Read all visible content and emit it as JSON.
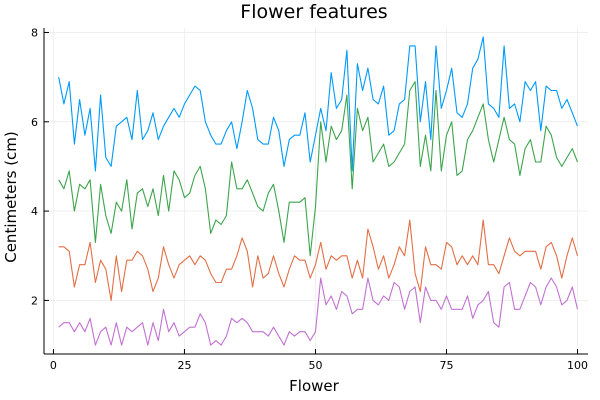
{
  "chart_data": {
    "type": "line",
    "title": "Flower features",
    "xlabel": "Flower",
    "ylabel": "Centimeters (cm)",
    "xlim": [
      0,
      100
    ],
    "ylim": [
      0.8,
      8.1
    ],
    "xticks": [
      0,
      25,
      50,
      75,
      100
    ],
    "yticks": [
      2,
      4,
      6,
      8
    ],
    "grid": true,
    "legend": "none",
    "x_start": 1,
    "series": [
      {
        "color": "#009AFA",
        "values": [
          7.0,
          6.4,
          6.9,
          5.5,
          6.5,
          5.7,
          6.3,
          4.9,
          6.6,
          5.2,
          5.0,
          5.9,
          6.0,
          6.1,
          5.6,
          6.7,
          5.6,
          5.8,
          6.2,
          5.6,
          5.9,
          6.1,
          6.3,
          6.1,
          6.4,
          6.6,
          6.8,
          6.7,
          6.0,
          5.7,
          5.5,
          5.5,
          5.8,
          6.0,
          5.4,
          6.0,
          6.7,
          6.3,
          5.6,
          5.5,
          5.5,
          6.1,
          5.8,
          5.0,
          5.6,
          5.7,
          5.7,
          6.2,
          5.1,
          5.7,
          6.3,
          5.8,
          7.1,
          6.3,
          6.5,
          7.6,
          4.9,
          7.3,
          6.7,
          7.2,
          6.5,
          6.4,
          6.8,
          5.7,
          5.8,
          6.4,
          6.5,
          7.7,
          7.7,
          6.0,
          6.9,
          5.6,
          7.7,
          6.3,
          6.7,
          7.2,
          6.2,
          6.1,
          6.4,
          7.2,
          7.4,
          7.9,
          6.4,
          6.3,
          6.1,
          7.7,
          6.3,
          6.4,
          6.0,
          6.9,
          6.7,
          6.9,
          5.8,
          6.8,
          6.7,
          6.7,
          6.3,
          6.5,
          6.2,
          5.9
        ]
      },
      {
        "color": "#E26F46",
        "values": [
          3.2,
          3.2,
          3.1,
          2.3,
          2.8,
          2.8,
          3.3,
          2.4,
          2.9,
          2.7,
          2.0,
          3.0,
          2.2,
          2.9,
          2.9,
          3.1,
          3.0,
          2.7,
          2.2,
          2.5,
          3.2,
          2.8,
          2.5,
          2.8,
          2.9,
          3.0,
          2.8,
          3.0,
          2.9,
          2.6,
          2.4,
          2.4,
          2.7,
          2.7,
          3.0,
          3.4,
          3.1,
          2.3,
          3.0,
          2.5,
          2.6,
          3.0,
          2.6,
          2.3,
          2.7,
          3.0,
          2.9,
          2.9,
          2.5,
          2.8,
          3.3,
          2.7,
          3.0,
          2.9,
          3.0,
          3.0,
          2.5,
          2.9,
          2.5,
          3.6,
          3.2,
          2.7,
          3.0,
          2.5,
          2.8,
          3.2,
          3.0,
          3.8,
          2.6,
          2.2,
          3.2,
          2.8,
          2.8,
          2.7,
          3.3,
          3.2,
          2.8,
          3.0,
          2.8,
          3.0,
          2.8,
          3.8,
          2.8,
          2.8,
          2.6,
          3.0,
          3.4,
          3.1,
          3.0,
          3.1,
          3.1,
          3.1,
          2.7,
          3.2,
          3.3,
          3.0,
          2.5,
          3.0,
          3.4,
          3.0
        ]
      },
      {
        "color": "#3DA44D",
        "values": [
          4.7,
          4.5,
          4.9,
          4.0,
          4.6,
          4.5,
          4.7,
          3.3,
          4.6,
          3.9,
          3.5,
          4.2,
          4.0,
          4.7,
          3.6,
          4.4,
          4.5,
          4.1,
          4.5,
          3.9,
          4.8,
          4.0,
          4.9,
          4.7,
          4.3,
          4.4,
          4.8,
          5.0,
          4.5,
          3.5,
          3.8,
          3.7,
          3.9,
          5.1,
          4.5,
          4.5,
          4.7,
          4.4,
          4.1,
          4.0,
          4.4,
          4.6,
          4.0,
          3.3,
          4.2,
          4.2,
          4.2,
          4.3,
          3.0,
          4.1,
          6.0,
          5.1,
          5.9,
          5.6,
          5.8,
          6.6,
          4.5,
          6.3,
          5.8,
          6.1,
          5.1,
          5.3,
          5.5,
          5.0,
          5.1,
          5.3,
          5.5,
          6.7,
          6.9,
          5.0,
          5.7,
          4.9,
          6.7,
          4.9,
          5.7,
          6.0,
          4.8,
          4.9,
          5.6,
          5.8,
          6.1,
          6.4,
          5.6,
          5.1,
          5.6,
          6.1,
          5.6,
          5.5,
          4.8,
          5.4,
          5.6,
          5.1,
          5.1,
          5.9,
          5.7,
          5.2,
          5.0,
          5.2,
          5.4,
          5.1
        ]
      },
      {
        "color": "#C271D2",
        "values": [
          1.4,
          1.5,
          1.5,
          1.3,
          1.5,
          1.3,
          1.6,
          1.0,
          1.3,
          1.4,
          1.0,
          1.5,
          1.0,
          1.4,
          1.3,
          1.4,
          1.5,
          1.0,
          1.5,
          1.1,
          1.8,
          1.3,
          1.5,
          1.2,
          1.3,
          1.4,
          1.4,
          1.7,
          1.5,
          1.0,
          1.1,
          1.0,
          1.2,
          1.6,
          1.5,
          1.6,
          1.5,
          1.3,
          1.3,
          1.3,
          1.2,
          1.4,
          1.2,
          1.0,
          1.3,
          1.2,
          1.3,
          1.3,
          1.1,
          1.3,
          2.5,
          1.9,
          2.1,
          1.8,
          2.2,
          2.1,
          1.7,
          1.8,
          1.8,
          2.5,
          2.0,
          1.9,
          2.1,
          2.0,
          2.4,
          2.3,
          1.8,
          2.2,
          2.3,
          1.5,
          2.3,
          2.0,
          2.0,
          1.8,
          2.1,
          1.8,
          1.8,
          1.8,
          2.1,
          1.6,
          1.9,
          2.0,
          2.2,
          1.5,
          1.4,
          2.3,
          2.4,
          1.8,
          1.8,
          2.1,
          2.4,
          2.3,
          1.9,
          2.3,
          2.5,
          2.3,
          1.9,
          2.0,
          2.3,
          1.8
        ]
      }
    ]
  }
}
